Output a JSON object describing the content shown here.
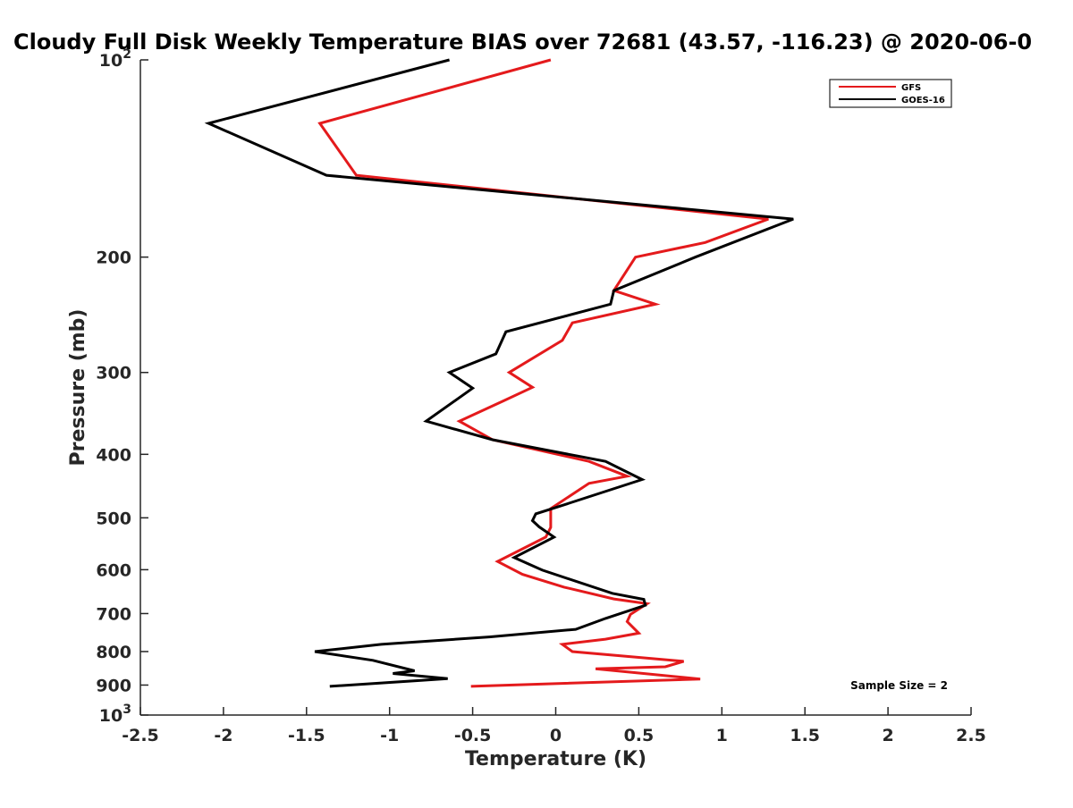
{
  "chart_data": {
    "type": "line",
    "title": "Cloudy Full Disk Weekly Temperature BIAS over 72681 (43.57, -116.23) @ 2020-06-0",
    "xlabel": "Temperature (K)",
    "ylabel": "Pressure (mb)",
    "xlim": [
      -2.5,
      2.5
    ],
    "ylim": [
      100,
      1000
    ],
    "yscale": "log",
    "y_reversed": true,
    "grid": false,
    "legend_position": "top-right",
    "x_ticks": [
      -2.5,
      -2,
      -1.5,
      -1,
      -0.5,
      0,
      0.5,
      1,
      1.5,
      2,
      2.5
    ],
    "x_tick_labels": [
      "-2.5",
      "-2",
      "-1.5",
      "-1",
      "-0.5",
      "0",
      "0.5",
      "1",
      "1.5",
      "2",
      "2.5"
    ],
    "y_ticks": [
      100,
      200,
      300,
      400,
      500,
      600,
      700,
      800,
      900,
      1000
    ],
    "y_tick_labels": [
      {
        "base": "10",
        "sup": "2"
      },
      {
        "base": "200",
        "sup": ""
      },
      {
        "base": "300",
        "sup": ""
      },
      {
        "base": "400",
        "sup": ""
      },
      {
        "base": "500",
        "sup": ""
      },
      {
        "base": "600",
        "sup": ""
      },
      {
        "base": "700",
        "sup": ""
      },
      {
        "base": "800",
        "sup": ""
      },
      {
        "base": "900",
        "sup": ""
      },
      {
        "base": "10",
        "sup": "3"
      }
    ],
    "annotation": "Sample Size = 2",
    "series": [
      {
        "name": "GFS",
        "color": "#e41a1c",
        "points": [
          [
            -0.03,
            100
          ],
          [
            -1.42,
            125
          ],
          [
            -1.2,
            150
          ],
          [
            1.28,
            175
          ],
          [
            0.9,
            190
          ],
          [
            0.48,
            200
          ],
          [
            0.35,
            225
          ],
          [
            0.6,
            236
          ],
          [
            0.1,
            252
          ],
          [
            0.04,
            268
          ],
          [
            -0.28,
            300
          ],
          [
            -0.14,
            316
          ],
          [
            -0.32,
            332
          ],
          [
            -0.58,
            356
          ],
          [
            -0.38,
            380
          ],
          [
            0.2,
            410
          ],
          [
            0.43,
            432
          ],
          [
            0.2,
            443
          ],
          [
            -0.03,
            484
          ],
          [
            -0.03,
            517
          ],
          [
            -0.06,
            535
          ],
          [
            -0.35,
            583
          ],
          [
            -0.2,
            610
          ],
          [
            0.05,
            638
          ],
          [
            0.35,
            665
          ],
          [
            0.55,
            676
          ],
          [
            0.45,
            702
          ],
          [
            0.43,
            720
          ],
          [
            0.5,
            750
          ],
          [
            0.3,
            766
          ],
          [
            0.04,
            780
          ],
          [
            0.1,
            800
          ],
          [
            0.77,
            828
          ],
          [
            0.66,
            844
          ],
          [
            0.24,
            850
          ],
          [
            0.87,
            881
          ],
          [
            -0.51,
            904
          ]
        ]
      },
      {
        "name": "GOES-16",
        "color": "#000000",
        "points": [
          [
            -0.64,
            100
          ],
          [
            -2.09,
            125
          ],
          [
            -1.38,
            150
          ],
          [
            1.43,
            175
          ],
          [
            0.84,
            200
          ],
          [
            0.35,
            225
          ],
          [
            0.33,
            236
          ],
          [
            -0.3,
            260
          ],
          [
            -0.36,
            281
          ],
          [
            -0.64,
            300
          ],
          [
            -0.5,
            317
          ],
          [
            -0.78,
            356
          ],
          [
            -0.38,
            380
          ],
          [
            0.3,
            410
          ],
          [
            0.52,
            437
          ],
          [
            0.08,
            475
          ],
          [
            -0.12,
            493
          ],
          [
            -0.14,
            505
          ],
          [
            -0.1,
            516
          ],
          [
            -0.01,
            535
          ],
          [
            -0.25,
            575
          ],
          [
            -0.08,
            601
          ],
          [
            0.34,
            652
          ],
          [
            0.53,
            666
          ],
          [
            0.54,
            680
          ],
          [
            0.3,
            712
          ],
          [
            0.12,
            740
          ],
          [
            -0.4,
            760
          ],
          [
            -1.05,
            780
          ],
          [
            -1.45,
            800
          ],
          [
            -1.1,
            825
          ],
          [
            -0.85,
            856
          ],
          [
            -0.98,
            864
          ],
          [
            -0.65,
            880
          ],
          [
            -1.36,
            904
          ]
        ]
      }
    ]
  }
}
